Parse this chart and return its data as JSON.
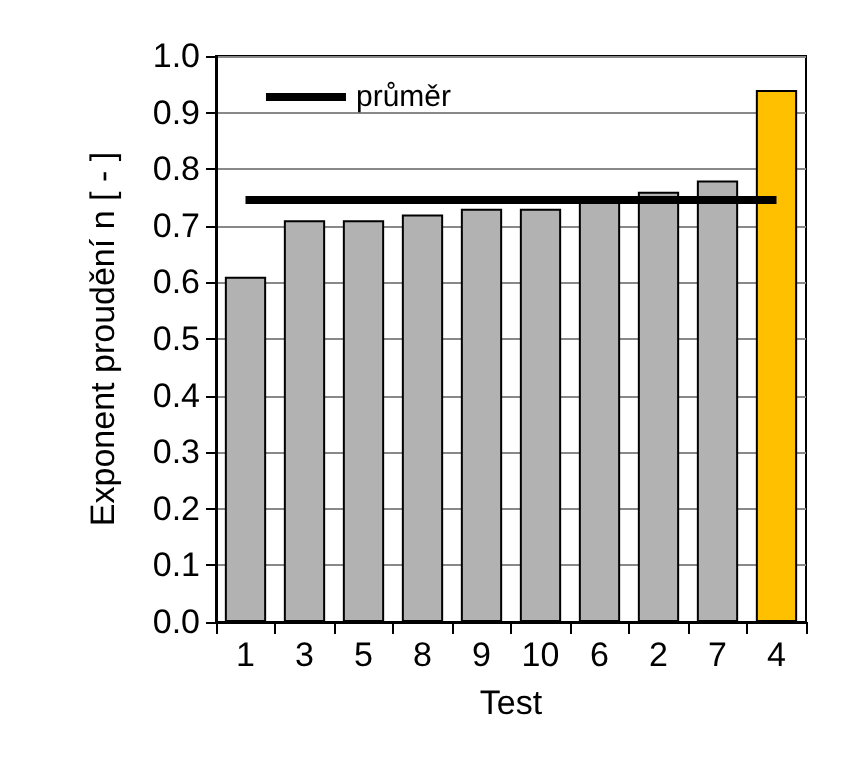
{
  "chart_data": {
    "type": "bar",
    "xlabel": "Test",
    "ylabel": "Exponent proudění n [ - ]",
    "categories": [
      "1",
      "3",
      "5",
      "8",
      "9",
      "10",
      "6",
      "2",
      "7",
      "4"
    ],
    "values": [
      0.61,
      0.71,
      0.71,
      0.72,
      0.73,
      0.73,
      0.75,
      0.76,
      0.78,
      0.94
    ],
    "colors": [
      "#b2b2b2",
      "#b2b2b2",
      "#b2b2b2",
      "#b2b2b2",
      "#b2b2b2",
      "#b2b2b2",
      "#b2b2b2",
      "#b2b2b2",
      "#b2b2b2",
      "#ffc000"
    ],
    "ylim": [
      0,
      1
    ],
    "yticks": [
      {
        "value": 0,
        "label": "0.0"
      },
      0.1,
      0.2,
      0.3,
      0.4,
      0.5,
      0.6,
      0.7,
      0.8,
      0.9,
      {
        "value": 1,
        "label": "1.0"
      }
    ],
    "grid": "y",
    "legend": "top left",
    "ref_lines": [
      {
        "axis": "y",
        "value": 0.745,
        "label": "průměr",
        "color": "#000000"
      }
    ]
  }
}
